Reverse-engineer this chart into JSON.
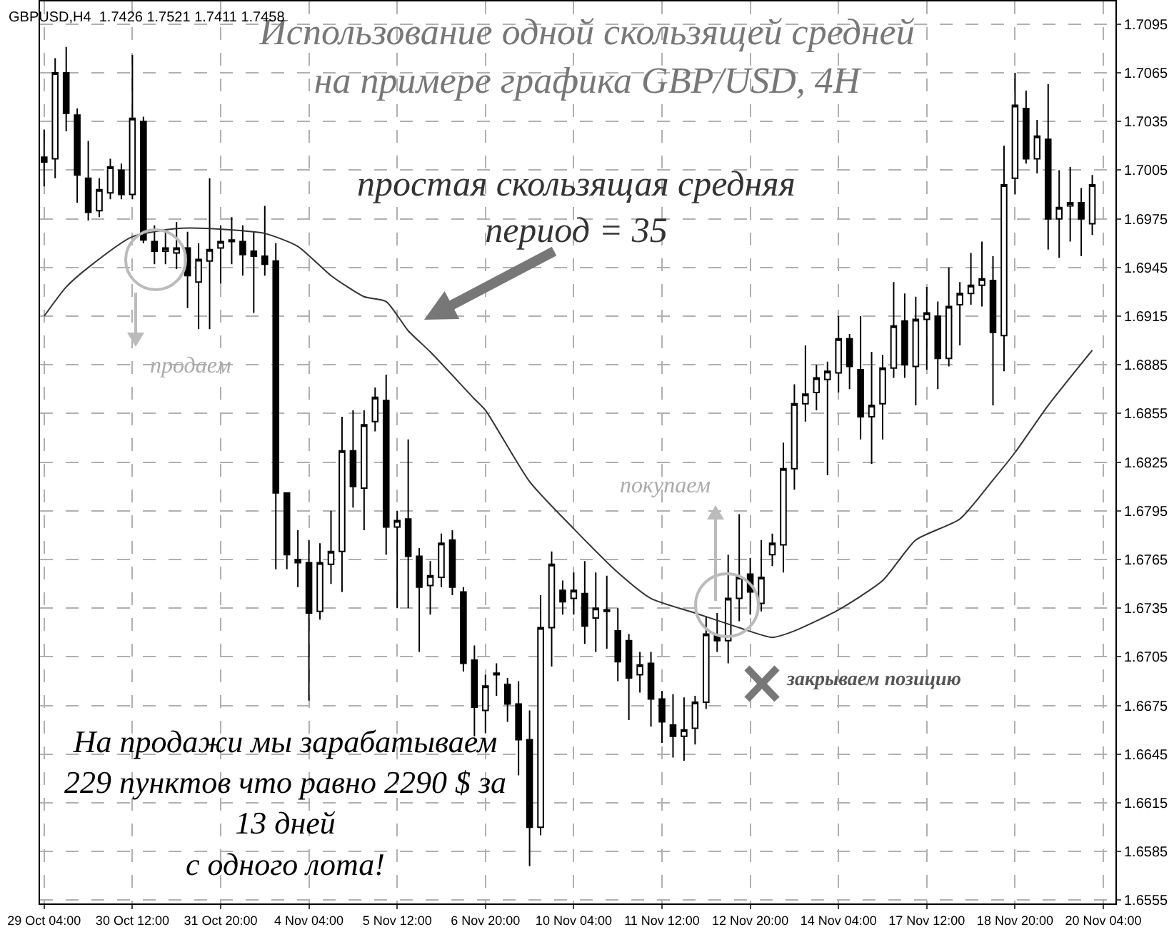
{
  "chart_data": {
    "type": "candlestick",
    "title": "Использование одной скользящей средней\nна примере графика GBP/USD, 4H",
    "categories": [
      "29 Oct 04:00",
      null,
      null,
      null,
      null,
      null,
      null,
      null,
      "30 Oct 12:00",
      null,
      null,
      null,
      null,
      null,
      null,
      null,
      "31 Oct 20:00",
      null,
      null,
      null,
      null,
      null,
      null,
      null,
      "4 Nov 04:00",
      null,
      null,
      null,
      null,
      null,
      null,
      null,
      "5 Nov 12:00",
      null,
      null,
      null,
      null,
      null,
      null,
      null,
      "6 Nov 20:00",
      null,
      null,
      null,
      null,
      null,
      null,
      null,
      "10 Nov 04:00",
      null,
      null,
      null,
      null,
      null,
      null,
      null,
      "11 Nov 12:00",
      null,
      null,
      null,
      null,
      null,
      null,
      null,
      "12 Nov 20:00",
      null,
      null,
      null,
      null,
      null,
      null,
      null,
      "14 Nov 04:00",
      null,
      null,
      null,
      null,
      null,
      null,
      null,
      "17 Nov 12:00",
      null,
      null,
      null,
      null,
      null,
      null,
      null,
      "18 Nov 20:00",
      null,
      null,
      null,
      null,
      null,
      null,
      null,
      "20 Nov 04:00"
    ],
    "ohlc": [
      [
        1.7013,
        1.703,
        1.6995,
        1.701
      ],
      [
        1.7012,
        1.7074,
        1.7,
        1.7065
      ],
      [
        1.7065,
        1.7081,
        1.7029,
        1.704
      ],
      [
        1.7039,
        1.7043,
        1.6985,
        1.7002
      ],
      [
        1.7,
        1.7023,
        1.6974,
        1.6979
      ],
      [
        1.698,
        1.7,
        1.6976,
        1.6993
      ],
      [
        1.6991,
        1.7012,
        1.6987,
        1.7007
      ],
      [
        1.7005,
        1.7009,
        1.6987,
        1.699
      ],
      [
        1.699,
        1.7076,
        1.6987,
        1.7037
      ],
      [
        1.7035,
        1.7038,
        1.696,
        1.6962
      ],
      [
        1.6961,
        1.6971,
        1.6947,
        1.6955
      ],
      [
        1.6955,
        1.6967,
        1.6947,
        1.6957
      ],
      [
        1.6954,
        1.6973,
        1.6944,
        1.6957
      ],
      [
        1.6957,
        1.6967,
        1.692,
        1.694
      ],
      [
        1.6936,
        1.696,
        1.6907,
        1.695
      ],
      [
        1.6949,
        1.7,
        1.6907,
        1.6956
      ],
      [
        1.6957,
        1.6971,
        1.6935,
        1.6961
      ],
      [
        1.6962,
        1.6976,
        1.6947,
        1.6961
      ],
      [
        1.6961,
        1.6971,
        1.694,
        1.6953
      ],
      [
        1.6955,
        1.6967,
        1.6917,
        1.6952
      ],
      [
        1.6952,
        1.6983,
        1.694,
        1.6947
      ],
      [
        1.6949,
        1.696,
        1.6759,
        1.6806
      ],
      [
        1.6806,
        1.6806,
        1.6759,
        1.6768
      ],
      [
        1.6765,
        1.6783,
        1.6748,
        1.6763
      ],
      [
        1.6763,
        1.6777,
        1.6678,
        1.6732
      ],
      [
        1.6733,
        1.6775,
        1.6728,
        1.6763
      ],
      [
        1.6762,
        1.6795,
        1.675,
        1.677
      ],
      [
        1.677,
        1.6853,
        1.6745,
        1.6832
      ],
      [
        1.6832,
        1.6857,
        1.6797,
        1.681
      ],
      [
        1.6809,
        1.6857,
        1.6783,
        1.6848
      ],
      [
        1.685,
        1.6871,
        1.6844,
        1.6865
      ],
      [
        1.6863,
        1.6879,
        1.6768,
        1.6785
      ],
      [
        1.6785,
        1.6795,
        1.6735,
        1.6789
      ],
      [
        1.679,
        1.6839,
        1.6735,
        1.6767
      ],
      [
        1.6767,
        1.6772,
        1.6708,
        1.6748
      ],
      [
        1.6749,
        1.6764,
        1.6731,
        1.6755
      ],
      [
        1.6754,
        1.6781,
        1.6748,
        1.6775
      ],
      [
        1.6777,
        1.6783,
        1.6743,
        1.6748
      ],
      [
        1.6745,
        1.6748,
        1.6696,
        1.6701
      ],
      [
        1.6703,
        1.6712,
        1.6656,
        1.6674
      ],
      [
        1.6672,
        1.6694,
        1.6658,
        1.6687
      ],
      [
        1.6694,
        1.6701,
        1.6681,
        1.6695
      ],
      [
        1.6688,
        1.6692,
        1.6665,
        1.6676
      ],
      [
        1.6676,
        1.669,
        1.6632,
        1.6654
      ],
      [
        1.6654,
        1.6672,
        1.6576,
        1.66
      ],
      [
        1.66,
        1.6743,
        1.6595,
        1.6723
      ],
      [
        1.6723,
        1.677,
        1.6699,
        1.6762
      ],
      [
        1.6746,
        1.6752,
        1.6731,
        1.6739
      ],
      [
        1.6741,
        1.6757,
        1.6731,
        1.6746
      ],
      [
        1.6744,
        1.6764,
        1.6713,
        1.6724
      ],
      [
        1.6729,
        1.6757,
        1.6708,
        1.6735
      ],
      [
        1.6734,
        1.6755,
        1.671,
        1.6733
      ],
      [
        1.6721,
        1.6735,
        1.669,
        1.6702
      ],
      [
        1.6715,
        1.6719,
        1.6666,
        1.6692
      ],
      [
        1.6694,
        1.6708,
        1.6683,
        1.67
      ],
      [
        1.6701,
        1.6708,
        1.6662,
        1.6679
      ],
      [
        1.6679,
        1.6684,
        1.6652,
        1.6665
      ],
      [
        1.6663,
        1.6682,
        1.6643,
        1.6656
      ],
      [
        1.6656,
        1.668,
        1.6641,
        1.666
      ],
      [
        1.6661,
        1.6681,
        1.6651,
        1.6677
      ],
      [
        1.6677,
        1.673,
        1.6673,
        1.6719
      ],
      [
        1.6718,
        1.6732,
        1.6708,
        1.6715
      ],
      [
        1.6715,
        1.6768,
        1.6701,
        1.6741
      ],
      [
        1.6741,
        1.6793,
        1.6727,
        1.6754
      ],
      [
        1.6756,
        1.6766,
        1.6731,
        1.6745
      ],
      [
        1.6738,
        1.6777,
        1.6733,
        1.6754
      ],
      [
        1.6768,
        1.6781,
        1.6761,
        1.6775
      ],
      [
        1.6774,
        1.6837,
        1.6757,
        1.6821
      ],
      [
        1.6821,
        1.6873,
        1.6808,
        1.6861
      ],
      [
        1.6861,
        1.6897,
        1.685,
        1.6867
      ],
      [
        1.6868,
        1.6885,
        1.6857,
        1.6877
      ],
      [
        1.6876,
        1.6887,
        1.6817,
        1.6881
      ],
      [
        1.688,
        1.6915,
        1.6868,
        1.6901
      ],
      [
        1.6901,
        1.6904,
        1.687,
        1.6884
      ],
      [
        1.6882,
        1.6915,
        1.6839,
        1.6853
      ],
      [
        1.6853,
        1.6893,
        1.6824,
        1.686
      ],
      [
        1.6861,
        1.6891,
        1.6839,
        1.6883
      ],
      [
        1.6883,
        1.6936,
        1.6877,
        1.6909
      ],
      [
        1.6912,
        1.6929,
        1.6877,
        1.6885
      ],
      [
        1.6884,
        1.6927,
        1.686,
        1.6913
      ],
      [
        1.6913,
        1.6933,
        1.6882,
        1.6917
      ],
      [
        1.6915,
        1.6924,
        1.687,
        1.6889
      ],
      [
        1.6889,
        1.6945,
        1.6884,
        1.6921
      ],
      [
        1.6922,
        1.6936,
        1.6897,
        1.6929
      ],
      [
        1.6929,
        1.6954,
        1.6922,
        1.6934
      ],
      [
        1.6934,
        1.6961,
        1.6921,
        1.6938
      ],
      [
        1.6937,
        1.6952,
        1.686,
        1.6905
      ],
      [
        1.6903,
        1.702,
        1.6881,
        1.6996
      ],
      [
        1.7,
        1.7065,
        1.699,
        1.7045
      ],
      [
        1.7043,
        1.7054,
        1.7009,
        1.7012
      ],
      [
        1.7012,
        1.7036,
        1.7003,
        1.7026
      ],
      [
        1.7024,
        1.7058,
        1.6956,
        1.6975
      ],
      [
        1.6975,
        1.7005,
        1.6951,
        1.6982
      ],
      [
        1.6983,
        1.7007,
        1.6961,
        1.6985
      ],
      [
        1.6985,
        1.6994,
        1.6952,
        1.6975
      ],
      [
        1.6972,
        1.7002,
        1.6965,
        1.6996
      ],
      null
    ],
    "series": [
      {
        "type": "line",
        "color": "#333333",
        "values": [
          1.6915,
          null,
          1.6933,
          null,
          1.6945,
          null,
          null,
          null,
          1.6964,
          null,
          null,
          null,
          1.6969,
          null,
          null,
          1.6969,
          null,
          null,
          null,
          null,
          1.6966,
          null,
          null,
          1.6958,
          null,
          null,
          1.694,
          null,
          null,
          1.6927,
          null,
          1.6924,
          null,
          1.6906,
          null,
          1.6893,
          null,
          null,
          null,
          1.6864,
          1.6857,
          null,
          null,
          null,
          1.6813,
          null,
          null,
          null,
          1.6784,
          null,
          null,
          null,
          1.6757,
          null,
          null,
          1.6741,
          null,
          null,
          null,
          1.6732,
          null,
          null,
          null,
          1.6723,
          null,
          null,
          1.6717,
          null,
          1.6721,
          null,
          null,
          null,
          1.6734,
          null,
          null,
          null,
          1.6752,
          null,
          null,
          1.6777,
          null,
          null,
          null,
          1.679,
          null,
          null,
          1.6814,
          null,
          1.6831,
          null,
          null,
          1.686,
          null,
          null,
          null,
          1.6894,
          null
        ]
      }
    ],
    "ylim": [
      1.6553,
      1.7109
    ],
    "yticks": [
      1.7095,
      1.7065,
      1.7035,
      1.7005,
      1.6975,
      1.6945,
      1.6915,
      1.6885,
      1.6855,
      1.6825,
      1.6795,
      1.6765,
      1.6735,
      1.6705,
      1.6675,
      1.6645,
      1.6615,
      1.6585,
      1.6555
    ],
    "grid": true,
    "annotations": [
      "GBPUSD,H4  1.7426 1.7521 1.7411 1.7458",
      "простая скользящая средняя\nпериод = 35",
      "продаем",
      "покупаем",
      "закрываем позицию",
      "На продажи мы зарабатываем\n229 пунктов что равно 2290 $ за\n13 дней\nс одного лота!"
    ]
  }
}
